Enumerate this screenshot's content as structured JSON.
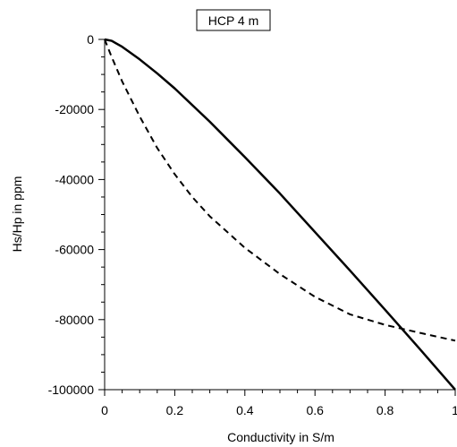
{
  "chart_data": {
    "type": "line",
    "title": "HCP  4 m",
    "xlabel": "Conductivity in S/m",
    "ylabel": "Hs/Hp in ppm",
    "xlim": [
      0,
      1
    ],
    "ylim": [
      -100000,
      0
    ],
    "x_ticks": [
      0,
      0.2,
      0.4,
      0.6,
      0.8,
      1
    ],
    "x_tick_labels": [
      "0",
      "0.2",
      "0.4",
      "0.6",
      "0.8",
      "1"
    ],
    "y_ticks": [
      0,
      -20000,
      -40000,
      -60000,
      -80000,
      -100000
    ],
    "y_tick_labels": [
      "0",
      "-20000",
      "-40000",
      "-60000",
      "-80000",
      "-100000"
    ],
    "grid": false,
    "series": [
      {
        "style": "solid",
        "color": "#000000",
        "x": [
          0,
          0.02,
          0.05,
          0.1,
          0.15,
          0.2,
          0.3,
          0.4,
          0.5,
          0.6,
          0.7,
          0.8,
          0.9,
          1.0
        ],
        "y": [
          0,
          -400,
          -2100,
          -5700,
          -9700,
          -14000,
          -23500,
          -33600,
          -44000,
          -55000,
          -66000,
          -77200,
          -88500,
          -100000
        ]
      },
      {
        "style": "dashed",
        "color": "#000000",
        "x": [
          0,
          0.02,
          0.05,
          0.1,
          0.15,
          0.2,
          0.25,
          0.3,
          0.4,
          0.5,
          0.6,
          0.7,
          0.8,
          0.9,
          1.0
        ],
        "y": [
          0,
          -5000,
          -12000,
          -22000,
          -31000,
          -38500,
          -45000,
          -50500,
          -59500,
          -67000,
          -73500,
          -78500,
          -81500,
          -83800,
          -86000
        ]
      }
    ]
  }
}
